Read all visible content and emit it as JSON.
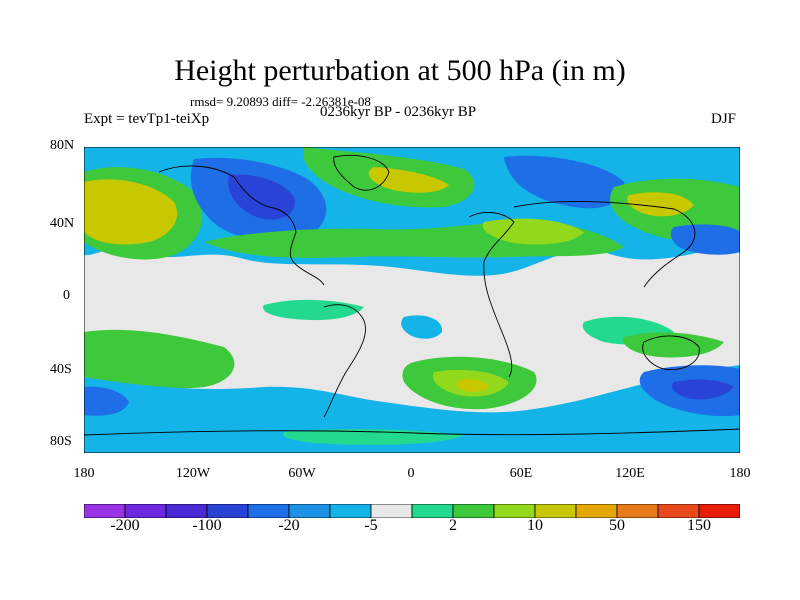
{
  "title": "Height perturbation at 500 hPa (in m)",
  "stats": "rmsd= 9.20893 diff= -2.26381e-08",
  "experiment": "Expt = tevTp1-teiXp",
  "period": "0236kyr BP - 0236kyr BP",
  "season": "DJF",
  "lat_labels": [
    "80N",
    "40N",
    "0",
    "40S",
    "80S"
  ],
  "lon_labels": [
    "180",
    "120W",
    "60W",
    "0",
    "60E",
    "120E",
    "180"
  ],
  "colorbar": {
    "colors": [
      "#9a32e6",
      "#6e28e0",
      "#4a2ad6",
      "#2843d6",
      "#1e6ee8",
      "#1c92e6",
      "#14b4e8",
      "#e8e8e8",
      "#23d98f",
      "#3ec83c",
      "#92d81c",
      "#c8c800",
      "#e6a800",
      "#e87a1a",
      "#e84a1e",
      "#e61e0a"
    ],
    "labels": [
      "-200",
      "-100",
      "-20",
      "-5",
      "2",
      "10",
      "50",
      "150"
    ]
  },
  "map_colors": {
    "neutral": "#e8e8e8",
    "pos_light": "#23d98f",
    "pos_mid": "#3ec83c",
    "pos_yellowgreen": "#92d81c",
    "pos_yellow": "#c8c800",
    "pos_orange": "#e6a800",
    "neg_light": "#14b4e8",
    "neg_mid": "#1c92e6",
    "neg_strong": "#1e6ee8",
    "neg_deep": "#2843d6",
    "coast": "#000000"
  }
}
